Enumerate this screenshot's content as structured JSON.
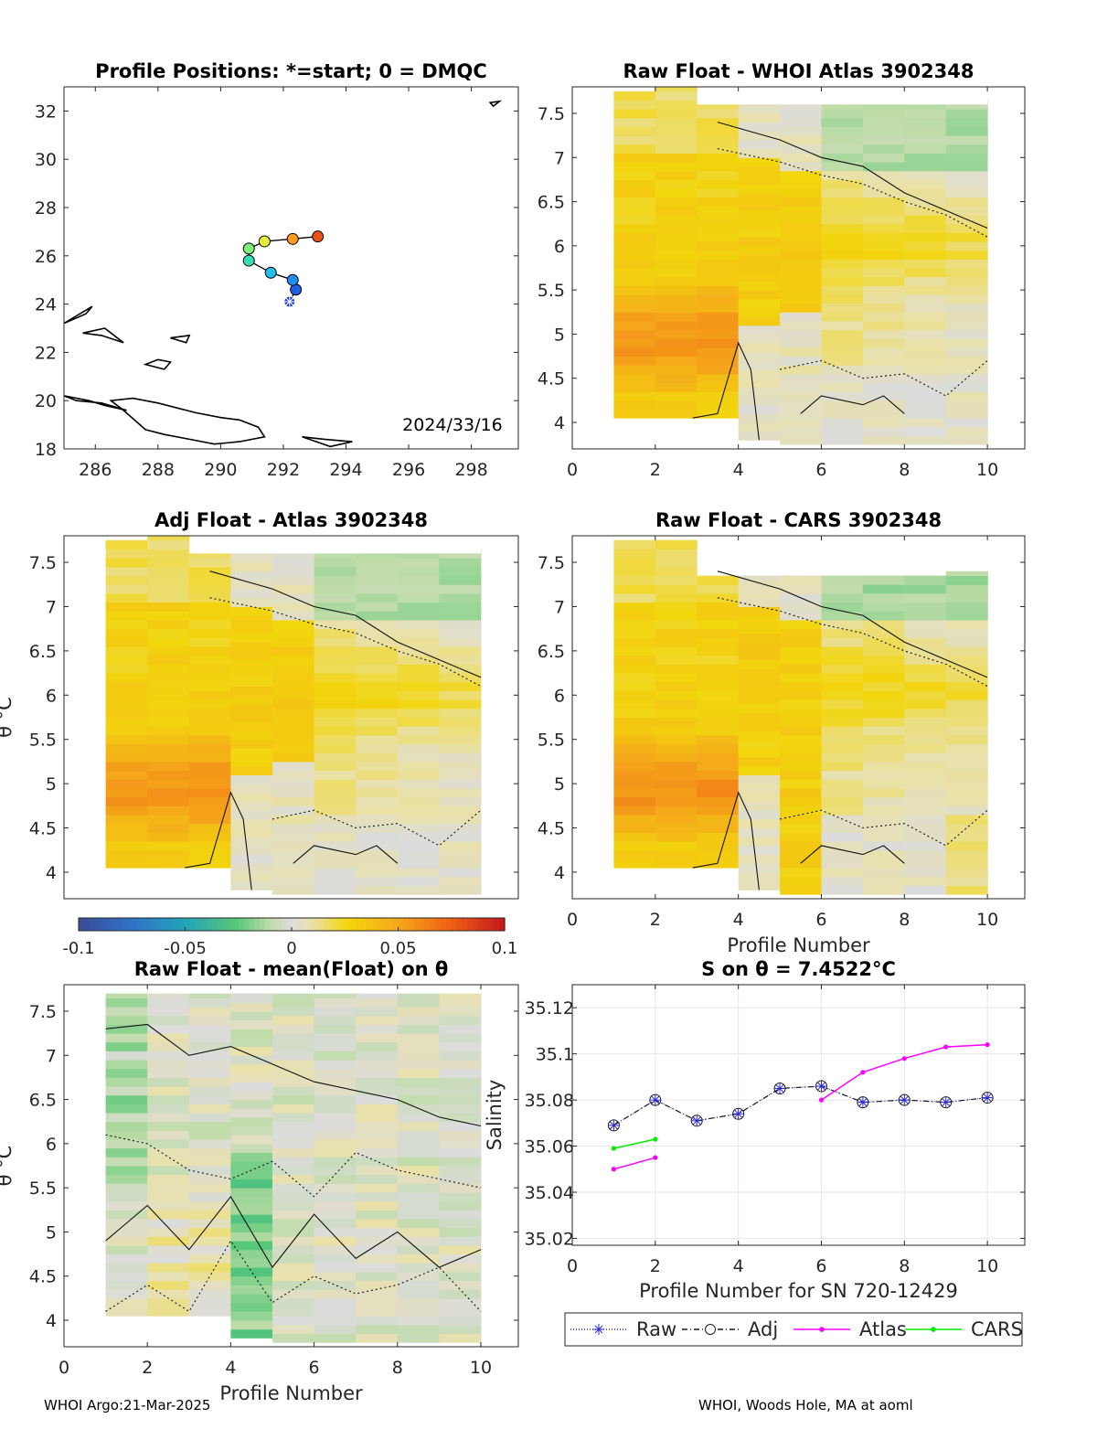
{
  "footer": {
    "left": "WHOI Argo:21-Mar-2025",
    "right": "WHOI, Woods Hole, MA at aoml"
  },
  "colors": {
    "raw": "#2b2bd6",
    "adj": "#1a1a1a",
    "atlas": "#ff00ff",
    "cars": "#00ee00",
    "axes_bg": "#ffffff",
    "neutral": "#dcdcdc"
  },
  "colorbar": {
    "ticks": [
      "-0.1",
      "-0.05",
      "0",
      "0.05",
      "0.1"
    ],
    "range": [
      -0.1,
      0.1
    ]
  },
  "chart_data": [
    {
      "id": "positions",
      "type": "scatter",
      "title": "Profile Positions: *=start; 0 = DMQC",
      "annotation": "2024/33/16",
      "xlim": [
        285,
        299.5
      ],
      "ylim": [
        18,
        33
      ],
      "xticks": [
        "286",
        "288",
        "290",
        "292",
        "294",
        "296",
        "298"
      ],
      "yticks": [
        "18",
        "20",
        "22",
        "24",
        "26",
        "28",
        "30",
        "32"
      ],
      "points": [
        {
          "x": 292.2,
          "y": 24.1,
          "color": "#2040d8",
          "marker": "star"
        },
        {
          "x": 292.4,
          "y": 24.6,
          "color": "#1f5fe8"
        },
        {
          "x": 292.3,
          "y": 25.0,
          "color": "#1c8ef0"
        },
        {
          "x": 291.6,
          "y": 25.3,
          "color": "#22c0e8"
        },
        {
          "x": 290.9,
          "y": 25.8,
          "color": "#35e0b8"
        },
        {
          "x": 290.9,
          "y": 26.3,
          "color": "#7ff07a"
        },
        {
          "x": 291.4,
          "y": 26.6,
          "color": "#e8f03a"
        },
        {
          "x": 292.3,
          "y": 26.7,
          "color": "#ff9a1a"
        },
        {
          "x": 293.1,
          "y": 26.8,
          "color": "#e8501a"
        }
      ]
    },
    {
      "id": "raw_atlas",
      "type": "heatmap",
      "title": "Raw Float - WHOI Atlas  3902348",
      "xlim": [
        0,
        10.9
      ],
      "ylim": [
        3.7,
        7.8
      ],
      "xticks": [
        "0",
        "2",
        "4",
        "6",
        "8",
        "10"
      ],
      "yticks": [
        "4",
        "4.5",
        "5",
        "5.5",
        "6",
        "6.5",
        "7",
        "7.5"
      ]
    },
    {
      "id": "adj_atlas",
      "type": "heatmap",
      "title": "Adj Float - Atlas  3902348",
      "ylabel": "θ °C",
      "xlim": [
        0,
        10.9
      ],
      "ylim": [
        3.7,
        7.8
      ],
      "xticks": [],
      "yticks": [
        "4",
        "4.5",
        "5",
        "5.5",
        "6",
        "6.5",
        "7",
        "7.5"
      ]
    },
    {
      "id": "raw_cars",
      "type": "heatmap",
      "title": "Raw Float - CARS  3902348",
      "xlabel": "Profile Number",
      "xlim": [
        0,
        10.9
      ],
      "ylim": [
        3.7,
        7.8
      ],
      "xticks": [
        "0",
        "2",
        "4",
        "6",
        "8",
        "10"
      ],
      "yticks": [
        "4",
        "4.5",
        "5",
        "5.5",
        "6",
        "6.5",
        "7",
        "7.5"
      ]
    },
    {
      "id": "raw_mean",
      "type": "heatmap",
      "title": "Raw Float - mean(Float) on θ",
      "xlabel": "Profile Number",
      "ylabel": "θ °C",
      "xlim": [
        0,
        10.9
      ],
      "ylim": [
        3.7,
        7.8
      ],
      "xticks": [
        "0",
        "2",
        "4",
        "6",
        "8",
        "10"
      ],
      "yticks": [
        "4",
        "4.5",
        "5",
        "5.5",
        "6",
        "6.5",
        "7",
        "7.5"
      ]
    },
    {
      "id": "salinity",
      "type": "line",
      "title": "S on θ = 7.4522°C",
      "xlabel": "Profile Number for SN 720-12429",
      "ylabel": "Salinity",
      "xlim": [
        0,
        10.9
      ],
      "ylim": [
        35.017,
        35.13
      ],
      "xticks": [
        "0",
        "2",
        "4",
        "6",
        "8",
        "10"
      ],
      "yticks": [
        "35.02",
        "35.04",
        "35.06",
        "35.08",
        "35.1",
        "35.12"
      ],
      "legend": [
        "Raw",
        "Adj",
        "Atlas",
        "CARS"
      ],
      "series": [
        {
          "name": "Raw",
          "x": [
            1,
            2,
            3,
            4,
            5,
            6,
            7,
            8,
            9,
            10
          ],
          "values": [
            35.069,
            35.08,
            35.071,
            35.074,
            35.085,
            35.086,
            35.079,
            35.08,
            35.079,
            35.081
          ]
        },
        {
          "name": "Adj",
          "x": [
            1,
            2,
            3,
            4,
            5,
            6,
            7,
            8,
            9,
            10
          ],
          "values": [
            35.069,
            35.08,
            35.071,
            35.074,
            35.085,
            35.086,
            35.079,
            35.08,
            35.079,
            35.081
          ]
        },
        {
          "name": "Atlas",
          "segments": [
            {
              "x": [
                1,
                2
              ],
              "values": [
                35.05,
                35.055
              ]
            },
            {
              "x": [
                6,
                7,
                8,
                9,
                10
              ],
              "values": [
                35.08,
                35.092,
                35.098,
                35.103,
                35.104
              ]
            }
          ]
        },
        {
          "name": "CARS",
          "segments": [
            {
              "x": [
                1,
                2
              ],
              "values": [
                35.059,
                35.063
              ]
            }
          ]
        }
      ]
    }
  ]
}
